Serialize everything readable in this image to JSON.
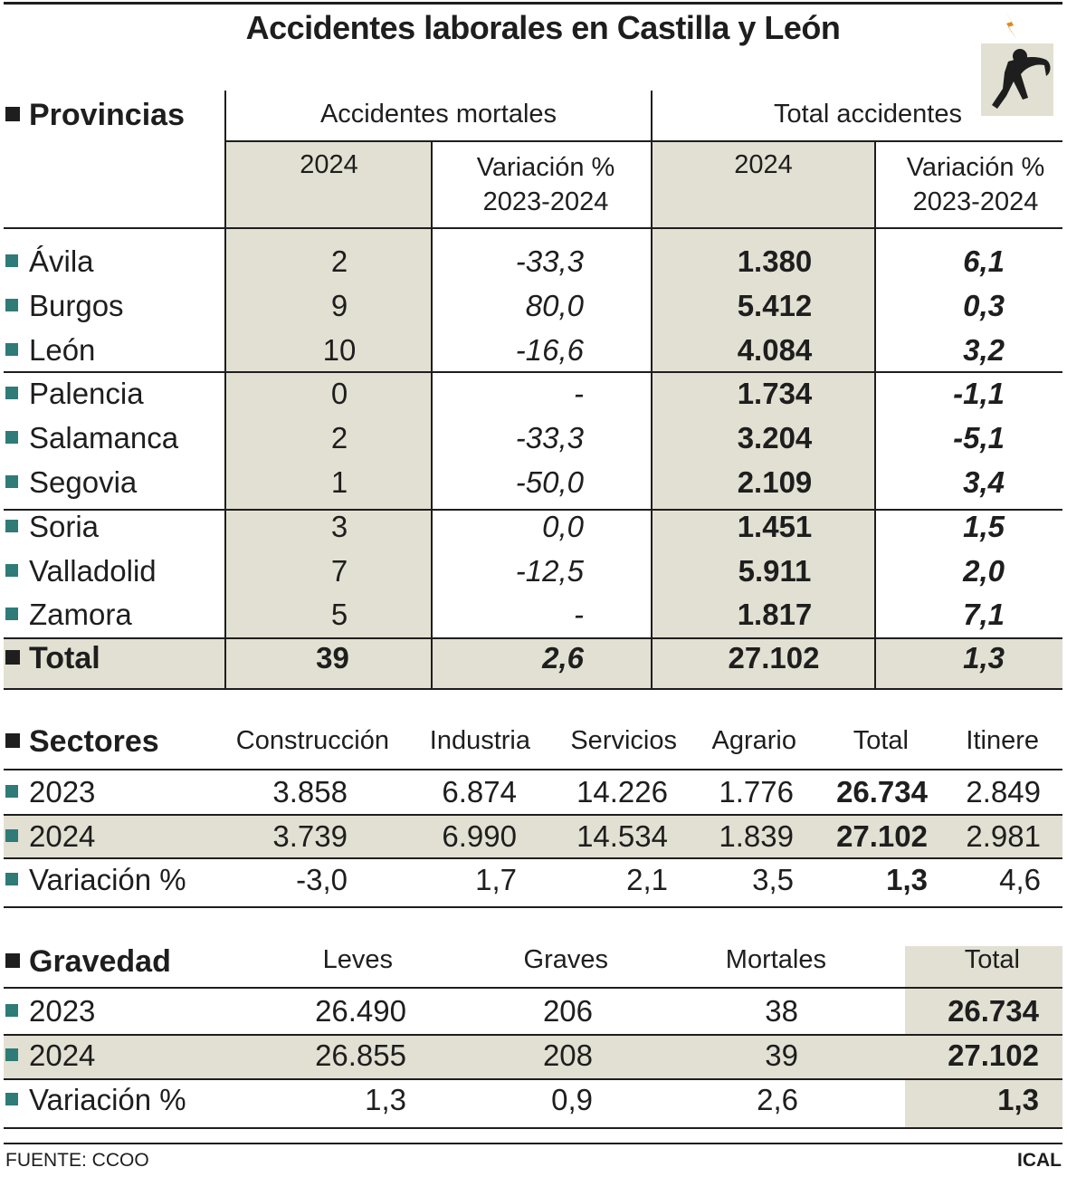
{
  "title": "Accidentes laborales en Castilla y León",
  "icon": "worker-electrocuted-icon",
  "colors": {
    "shade": "#e2e0d2",
    "bullet": "#2f7b78",
    "text": "#1e1e1e",
    "bolt": "#e08a1e"
  },
  "chart_data": [
    {
      "type": "table",
      "section": "Provincias",
      "groups": [
        "Accidentes mortales",
        "Total accidentes"
      ],
      "columns": [
        "2024",
        "Variación %\n2023-2024",
        "2024",
        "Variación %\n2023-2024"
      ],
      "col_labels": {
        "year": "2024",
        "var_line1": "Variación %",
        "var_line2": "2023-2024"
      },
      "rows": [
        {
          "name": "Ávila",
          "mort": "2",
          "mort_var": "-33,3",
          "total": "1.380",
          "total_var": "6,1"
        },
        {
          "name": "Burgos",
          "mort": "9",
          "mort_var": "80,0",
          "total": "5.412",
          "total_var": "0,3"
        },
        {
          "name": "León",
          "mort": "10",
          "mort_var": "-16,6",
          "total": "4.084",
          "total_var": "3,2"
        },
        {
          "name": "Palencia",
          "mort": "0",
          "mort_var": "-",
          "total": "1.734",
          "total_var": "-1,1"
        },
        {
          "name": "Salamanca",
          "mort": "2",
          "mort_var": "-33,3",
          "total": "3.204",
          "total_var": "-5,1"
        },
        {
          "name": "Segovia",
          "mort": "1",
          "mort_var": "-50,0",
          "total": "2.109",
          "total_var": "3,4"
        },
        {
          "name": "Soria",
          "mort": "3",
          "mort_var": "0,0",
          "total": "1.451",
          "total_var": "1,5"
        },
        {
          "name": "Valladolid",
          "mort": "7",
          "mort_var": "-12,5",
          "total": "5.911",
          "total_var": "2,0"
        },
        {
          "name": "Zamora",
          "mort": "5",
          "mort_var": "-",
          "total": "1.817",
          "total_var": "7,1"
        }
      ],
      "total": {
        "name": "Total",
        "mort": "39",
        "mort_var": "2,6",
        "total": "27.102",
        "total_var": "1,3"
      }
    },
    {
      "type": "table",
      "section": "Sectores",
      "columns": [
        "Construcción",
        "Industria",
        "Servicios",
        "Agrario",
        "Total",
        "Itinere"
      ],
      "rows": [
        {
          "name": "2023",
          "values": [
            "3.858",
            "6.874",
            "14.226",
            "1.776",
            "26.734",
            "2.849"
          ]
        },
        {
          "name": "2024",
          "values": [
            "3.739",
            "6.990",
            "14.534",
            "1.839",
            "27.102",
            "2.981"
          ]
        },
        {
          "name": "Variación %",
          "values": [
            "-3,0",
            "1,7",
            "2,1",
            "3,5",
            "1,3",
            "4,6"
          ]
        }
      ]
    },
    {
      "type": "table",
      "section": "Gravedad",
      "columns": [
        "Leves",
        "Graves",
        "Mortales",
        "Total"
      ],
      "rows": [
        {
          "name": "2023",
          "values": [
            "26.490",
            "206",
            "38",
            "26.734"
          ]
        },
        {
          "name": "2024",
          "values": [
            "26.855",
            "208",
            "39",
            "27.102"
          ]
        },
        {
          "name": "Variación %",
          "values": [
            "1,3",
            "0,9",
            "2,6",
            "1,3"
          ]
        }
      ]
    }
  ],
  "footer": {
    "source": "FUENTE: CCOO",
    "agency": "ICAL"
  }
}
